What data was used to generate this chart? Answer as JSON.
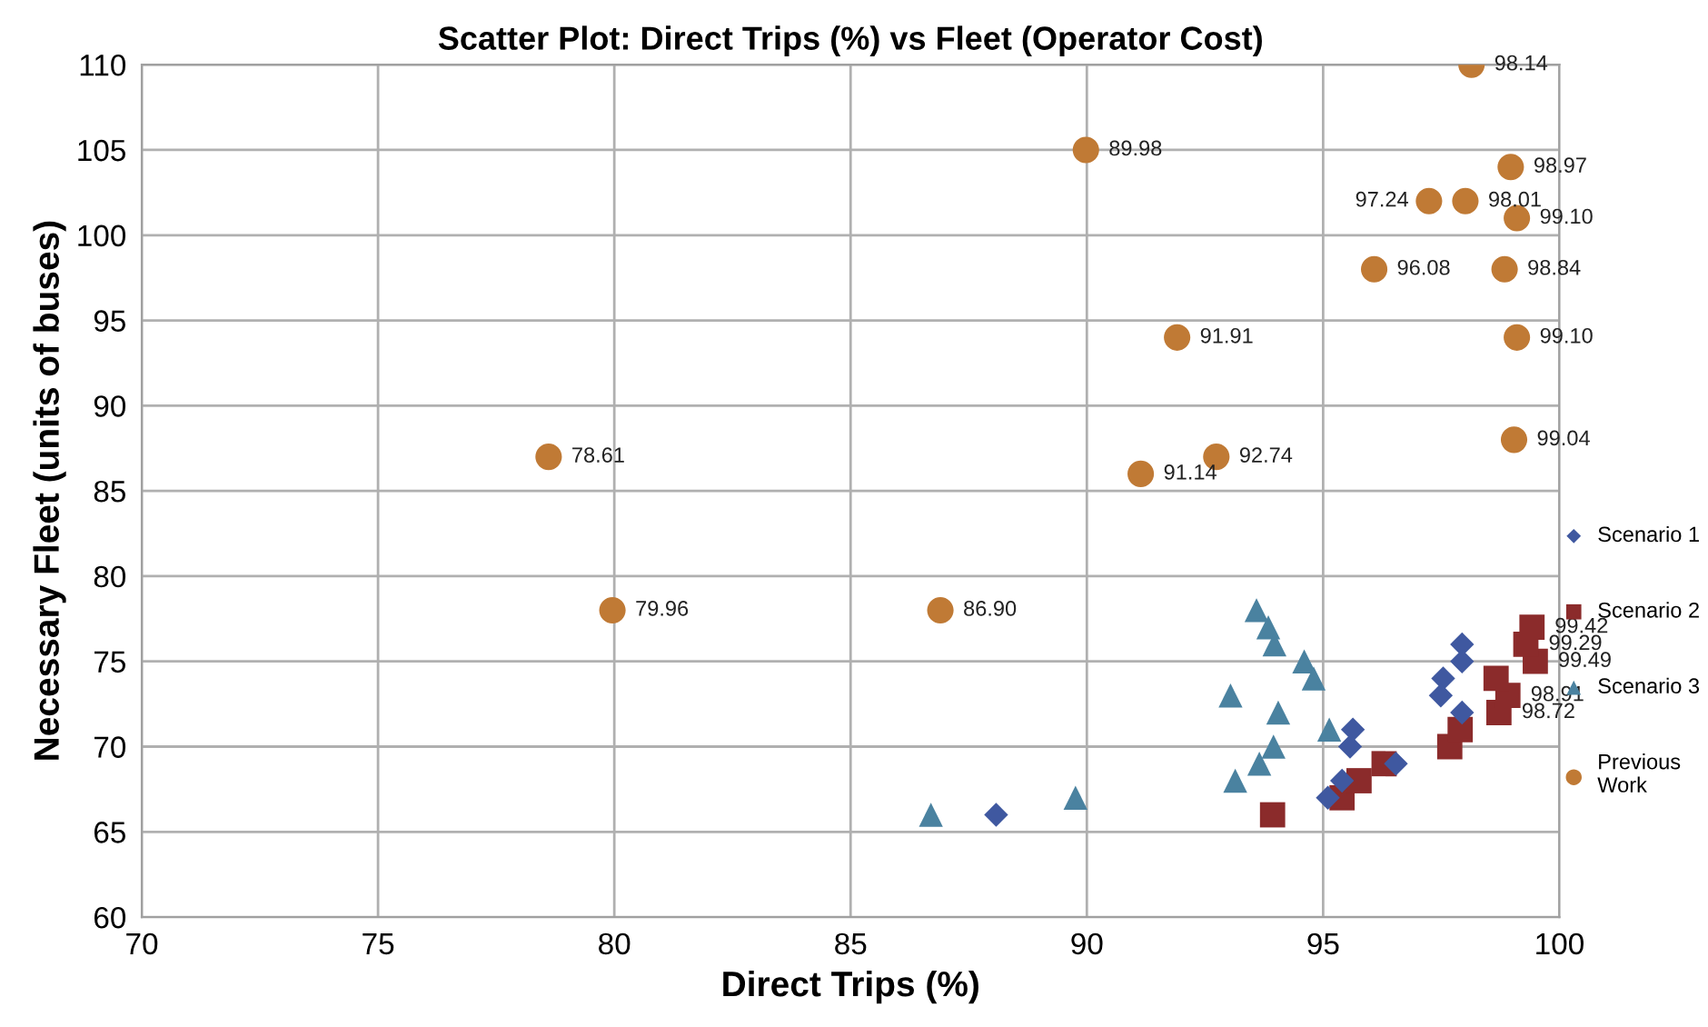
{
  "chart_data": {
    "type": "scatter",
    "title": "Scatter Plot: Direct Trips (%) vs Fleet (Operator Cost)",
    "xlabel": "Direct Trips (%)",
    "ylabel": "Necessary Fleet (units of buses)",
    "xlim": [
      70,
      100
    ],
    "ylim": [
      60,
      110
    ],
    "xticks": [
      70,
      75,
      80,
      85,
      90,
      95,
      100
    ],
    "yticks": [
      60,
      65,
      70,
      75,
      80,
      85,
      90,
      95,
      100,
      105,
      110
    ],
    "grid": true,
    "legend": "right",
    "series": [
      {
        "name": "Scenario 1",
        "color": "#3f58a0",
        "marker": "diamond",
        "x": [
          88.08,
          97.94,
          97.94,
          97.54,
          97.49,
          97.94,
          95.63,
          95.57,
          96.54,
          95.4,
          95.1
        ],
        "values": [
          66,
          76,
          75,
          74,
          73,
          72,
          71,
          70,
          69,
          68,
          67
        ]
      },
      {
        "name": "Scenario 2",
        "color": "#8b2b2b",
        "marker": "square",
        "x": [
          93.93,
          95.4,
          95.76,
          96.29,
          97.68,
          97.9,
          98.72,
          98.91,
          98.66,
          99.49,
          99.29,
          99.42
        ],
        "values": [
          66,
          67,
          68,
          69,
          70,
          71,
          72,
          73,
          74,
          75,
          76,
          77
        ]
      },
      {
        "name": "Scenario 3",
        "color": "#4a82a0",
        "marker": "triangle",
        "x": [
          93.59,
          93.84,
          93.97,
          94.6,
          94.8,
          93.04,
          94.05,
          95.13,
          93.95,
          93.65,
          93.14,
          89.76,
          86.7
        ],
        "values": [
          78,
          77,
          76,
          75,
          74,
          73,
          72,
          71,
          70,
          69,
          68,
          67,
          66
        ]
      },
      {
        "name": "Previous\nWork",
        "color": "#c07a35",
        "marker": "circle",
        "x": [
          98.14,
          89.98,
          98.97,
          97.24,
          98.01,
          99.1,
          96.08,
          98.84,
          91.91,
          99.1,
          99.04,
          78.61,
          92.74,
          91.14,
          79.96,
          86.9
        ],
        "values": [
          110,
          105,
          104,
          102,
          102,
          101,
          98,
          98,
          94,
          94,
          88,
          87,
          87,
          86,
          78,
          78
        ]
      }
    ],
    "annotations": [
      {
        "text": "98.14",
        "x": 98.14,
        "y": 110
      },
      {
        "text": "89.98",
        "x": 89.98,
        "y": 105
      },
      {
        "text": "98.97",
        "x": 98.97,
        "y": 104
      },
      {
        "text": "97.24",
        "x": 97.24,
        "y": 102
      },
      {
        "text": "98.01",
        "x": 98.01,
        "y": 102
      },
      {
        "text": "99.10",
        "x": 99.1,
        "y": 101
      },
      {
        "text": "96.08",
        "x": 96.08,
        "y": 98
      },
      {
        "text": "98.84",
        "x": 98.84,
        "y": 98
      },
      {
        "text": "91.91",
        "x": 91.91,
        "y": 94
      },
      {
        "text": "99.10",
        "x": 99.1,
        "y": 94
      },
      {
        "text": "99.04",
        "x": 99.04,
        "y": 88
      },
      {
        "text": "78.61",
        "x": 78.61,
        "y": 87
      },
      {
        "text": "92.74",
        "x": 92.74,
        "y": 87
      },
      {
        "text": "91.14",
        "x": 91.14,
        "y": 86
      },
      {
        "text": "79.96",
        "x": 79.96,
        "y": 78
      },
      {
        "text": "86.90",
        "x": 86.9,
        "y": 78
      },
      {
        "text": "99.42",
        "x": 99.42,
        "y": 77
      },
      {
        "text": "99.29",
        "x": 99.29,
        "y": 76
      },
      {
        "text": "99.49",
        "x": 99.49,
        "y": 75
      },
      {
        "text": "98.91",
        "x": 98.91,
        "y": 73
      },
      {
        "text": "98.72",
        "x": 98.72,
        "y": 72
      }
    ]
  }
}
